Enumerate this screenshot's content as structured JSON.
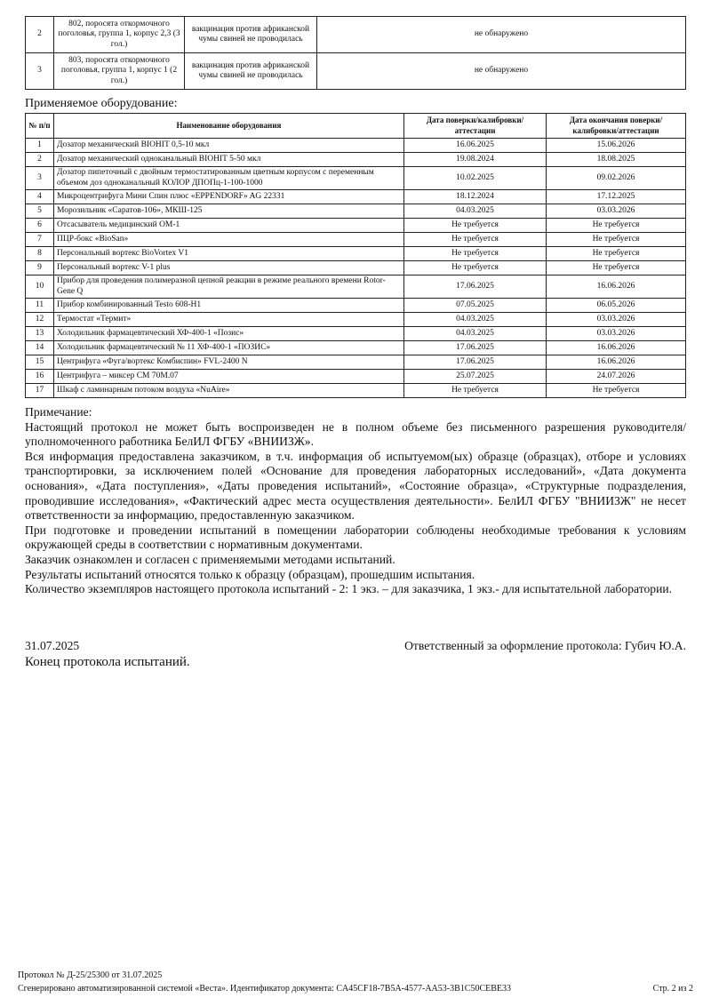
{
  "results_table": {
    "rows": [
      {
        "n": "2",
        "sample": "802, поросята откормочного поголовья, группа 1, корпус 2,3 (3 гол.)",
        "vaccination": "вакцинация против африканской чумы свиней не проводилась",
        "result": "не обнаружено"
      },
      {
        "n": "3",
        "sample": "803, поросята откормочного поголовья, группа 1, корпус 1 (2 гол.)",
        "vaccination": "вакцинация против африканской чумы свиней не проводилась",
        "result": "не обнаружено"
      }
    ]
  },
  "equipment": {
    "title": "Применяемое оборудование:",
    "headers": [
      "№ п/п",
      "Наименование оборудования",
      "Дата поверки/калибровки/аттестации",
      "Дата окончания поверки/калибровки/аттестации"
    ],
    "rows": [
      [
        "1",
        "Дозатор механический BIOHIT 0,5-10 мкл",
        "16.06.2025",
        "15.06.2026"
      ],
      [
        "2",
        "Дозатор механический одноканальный BIOHIT 5-50 мкл",
        "19.08.2024",
        "18.08.2025"
      ],
      [
        "3",
        "Дозатор пипеточный с двойным термостатированным цветным корпусом с переменным объемом доз одноканальный КОЛОР ДПОПц-1-100-1000",
        "10.02.2025",
        "09.02.2026"
      ],
      [
        "4",
        "Микроцентрифуга Мини Спин плюс «EPPENDORF» AG 22331",
        "18.12.2024",
        "17.12.2025"
      ],
      [
        "5",
        "Морозильник «Саратов-106», МКШ-125",
        "04.03.2025",
        "03.03.2026"
      ],
      [
        "6",
        "Отсасыватель медицинский ОМ-1",
        "Не требуется",
        "Не требуется"
      ],
      [
        "7",
        "ПЦР-бокс «BioSan»",
        "Не требуется",
        "Не требуется"
      ],
      [
        "8",
        "Персональный вортекс BioVortex V1",
        "Не требуется",
        "Не требуется"
      ],
      [
        "9",
        "Персональный вортекс V-1 plus",
        "Не требуется",
        "Не требуется"
      ],
      [
        "10",
        "Прибор для проведения полимеразной цепной реакции в режиме реального времени Rotor-Gene Q",
        "17.06.2025",
        "16.06.2026"
      ],
      [
        "11",
        "Прибор комбинированный Testo 608-H1",
        "07.05.2025",
        "06.05.2026"
      ],
      [
        "12",
        "Термостат «Термит»",
        "04.03.2025",
        "03.03.2026"
      ],
      [
        "13",
        "Холодильник фармацевтический ХФ-400-1 «Позис»",
        "04.03.2025",
        "03.03.2026"
      ],
      [
        "14",
        "Холодильник фармацевтический № 11 ХФ-400-1 «ПОЗИС»",
        "17.06.2025",
        "16.06.2026"
      ],
      [
        "15",
        "Центрифуга «Фуга/вортекс Комбиспин» FVL-2400 N",
        "17.06.2025",
        "16.06.2026"
      ],
      [
        "16",
        "Центрифуга – миксер CM 70M.07",
        "25.07.2025",
        "24.07.2026"
      ],
      [
        "17",
        "Шкаф с ламинарным потоком воздуха «NuAire»",
        "Не требуется",
        "Не требуется"
      ]
    ]
  },
  "notes": [
    "Примечание:",
    "Настоящий протокол не может быть воспроизведен не в полном объеме без письменного разрешения руководителя/уполномоченного работника БелИЛ ФГБУ «ВНИИЗЖ».",
    "Вся информация предоставлена заказчиком, в т.ч. информация об испытуемом(ых) образце (образцах), отборе и условиях транспортировки, за исключением полей «Основание для проведения лабораторных исследований», «Дата документа основания», «Дата поступления», «Даты проведения испытаний», «Состояние образца», «Структурные подразделения, проводившие исследования», «Фактический адрес места осуществления деятельности». БелИЛ ФГБУ \"ВНИИЗЖ\" не несет ответственности за информацию, предоставленную заказчиком.",
    "При подготовке и проведении испытаний в помещении лаборатории соблюдены необходимые требования к условиям окружающей среды в соответствии с нормативным документами.",
    "Заказчик ознакомлен и согласен с применяемыми методами испытаний.",
    "Результаты испытаний относятся только к образцу (образцам), прошедшим испытания.",
    "Количество экземпляров настоящего протокола испытаний - 2: 1 экз. – для заказчика, 1 экз.- для испытательной лаборатории."
  ],
  "signature": {
    "date": "31.07.2025",
    "responsible": "Ответственный за оформление протокола: Губич Ю.А.",
    "end": "Конец протокола испытаний."
  },
  "footer": {
    "protocol": "Протокол № Д-25/25300 от 31.07.2025",
    "generated": "Сгенерировано автоматизированной системой «Веста». Идентификатор документа: CA45CF18-7B5A-4577-AA53-3B1C50CEBE33",
    "page": "Стр. 2 из 2"
  }
}
